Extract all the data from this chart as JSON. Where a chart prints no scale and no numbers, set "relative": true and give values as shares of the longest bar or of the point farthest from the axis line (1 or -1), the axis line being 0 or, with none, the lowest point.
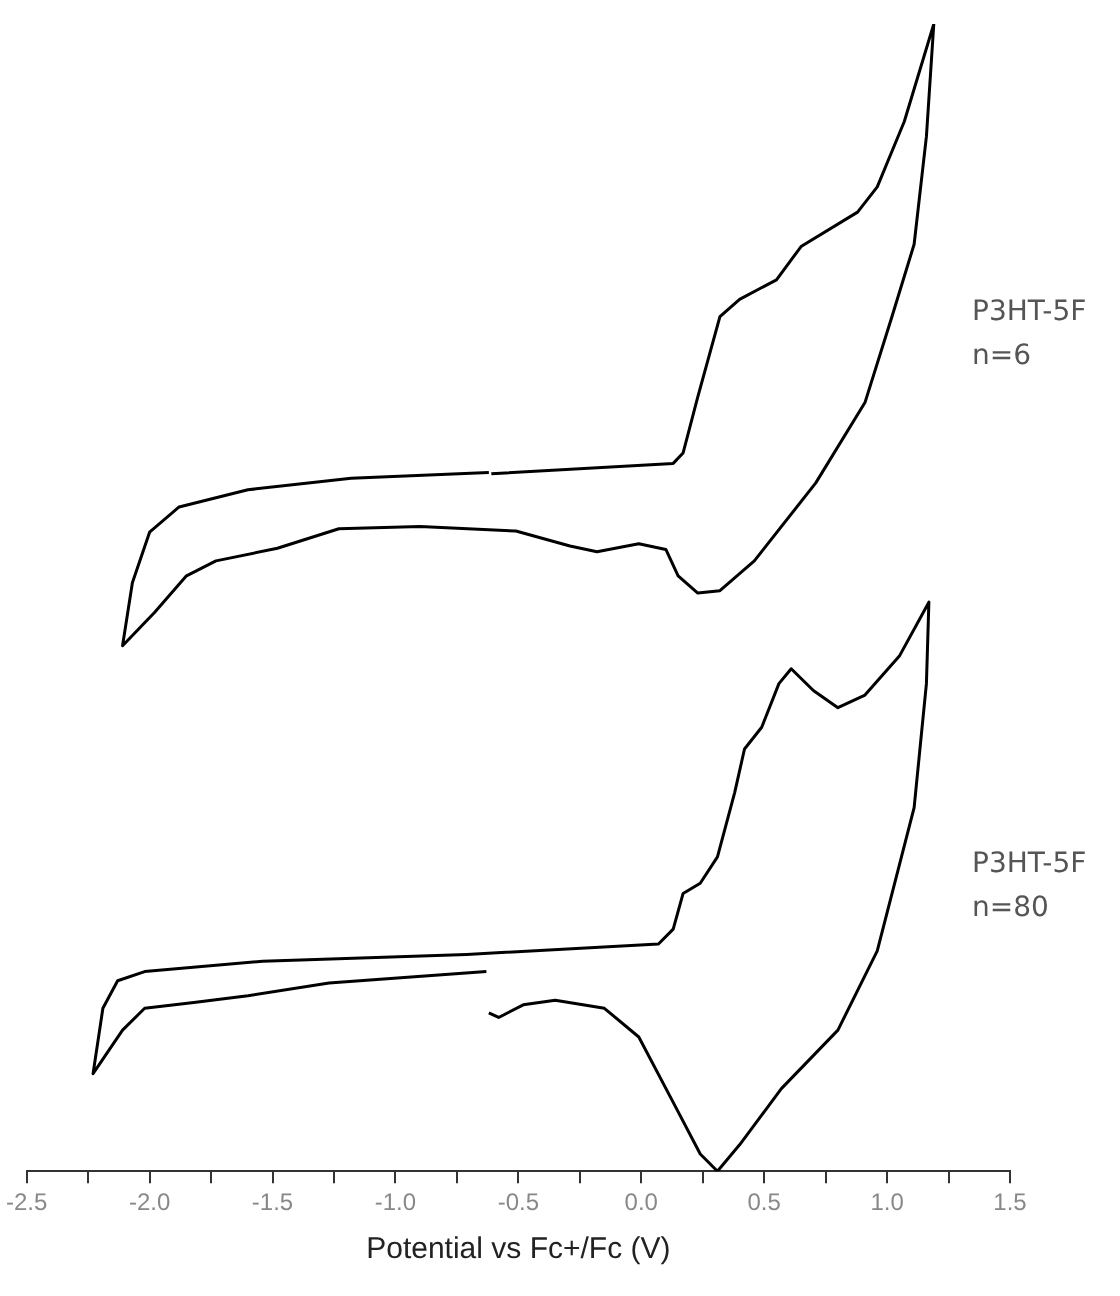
{
  "chart_data": {
    "type": "line",
    "relative": true,
    "xlabel": "Potential vs Fc+/Fc (V)",
    "xlim": [
      -2.5,
      1.5
    ],
    "xticks": [
      {
        "value": -2.5,
        "label": "-2.5"
      },
      {
        "value": -2.25,
        "label": null
      },
      {
        "value": -2,
        "label": "-2.0"
      },
      {
        "value": -1.75,
        "label": null
      },
      {
        "value": -1.5,
        "label": "-1.5"
      },
      {
        "value": -1.25,
        "label": null
      },
      {
        "value": -1,
        "label": "-1.0"
      },
      {
        "value": -0.75,
        "label": null
      },
      {
        "value": -0.5,
        "label": "-0.5"
      },
      {
        "value": -0.25,
        "label": null
      },
      {
        "value": 0,
        "label": "0.0"
      },
      {
        "value": 0.25,
        "label": null
      },
      {
        "value": 0.5,
        "label": "0.5"
      },
      {
        "value": 0.75,
        "label": null
      },
      {
        "value": 1,
        "label": "1.0"
      },
      {
        "value": 1.25,
        "label": null
      },
      {
        "value": 1.5,
        "label": "1.5"
      }
    ],
    "grid": false,
    "legend": false,
    "marker": "none",
    "line_style": "solid",
    "series": [
      {
        "name": "P3HT-5F\nn=6",
        "color": "#000000",
        "x": [
          -0.61,
          0.13,
          0.17,
          0.23,
          0.32,
          0.4,
          0.55,
          0.65,
          0.88,
          0.96,
          1.07,
          1.19,
          1.16,
          1.11,
          1.02,
          0.91,
          0.71,
          0.46,
          0.32,
          0.23,
          0.15,
          0.1,
          -0.01,
          -0.18,
          -0.29,
          -0.51,
          -0.9,
          -1.23,
          -1.48,
          -1.73,
          -1.85,
          -1.98,
          -2.11,
          -2.07,
          -2.0,
          -1.88,
          -1.6,
          -1.18,
          -0.62
        ],
        "values": [
          0.608,
          0.617,
          0.626,
          0.675,
          0.745,
          0.76,
          0.777,
          0.806,
          0.836,
          0.858,
          0.915,
          1.0,
          0.902,
          0.808,
          0.745,
          0.67,
          0.6,
          0.532,
          0.506,
          0.504,
          0.519,
          0.542,
          0.547,
          0.54,
          0.545,
          0.558,
          0.562,
          0.56,
          0.543,
          0.532,
          0.519,
          0.487,
          0.458,
          0.513,
          0.557,
          0.579,
          0.594,
          0.604,
          0.609
        ]
      },
      {
        "name": "P3HT-5F\nn=80",
        "color": "#000000",
        "x": [
          -0.63,
          -1.27,
          -1.6,
          -1.82,
          -2.02,
          -2.11,
          -2.23,
          -2.19,
          -2.13,
          -2.02,
          -1.54,
          -0.71,
          0.07,
          0.13,
          0.17,
          0.24,
          0.31,
          0.38,
          0.42,
          0.49,
          0.56,
          0.61,
          0.7,
          0.8,
          0.91,
          1.05,
          1.17,
          1.16,
          1.11,
          0.96,
          0.8,
          0.57,
          0.4,
          0.31,
          0.24,
          0.13,
          -0.01,
          -0.15,
          -0.35,
          -0.48,
          -0.58,
          -0.62
        ],
        "values": [
          0.174,
          0.164,
          0.153,
          0.147,
          0.142,
          0.123,
          0.085,
          0.142,
          0.166,
          0.174,
          0.183,
          0.189,
          0.198,
          0.211,
          0.242,
          0.251,
          0.274,
          0.33,
          0.368,
          0.387,
          0.425,
          0.438,
          0.419,
          0.404,
          0.415,
          0.449,
          0.496,
          0.425,
          0.317,
          0.192,
          0.123,
          0.072,
          0.023,
          0.0,
          0.015,
          0.06,
          0.117,
          0.142,
          0.149,
          0.145,
          0.134,
          0.138
        ]
      }
    ]
  }
}
